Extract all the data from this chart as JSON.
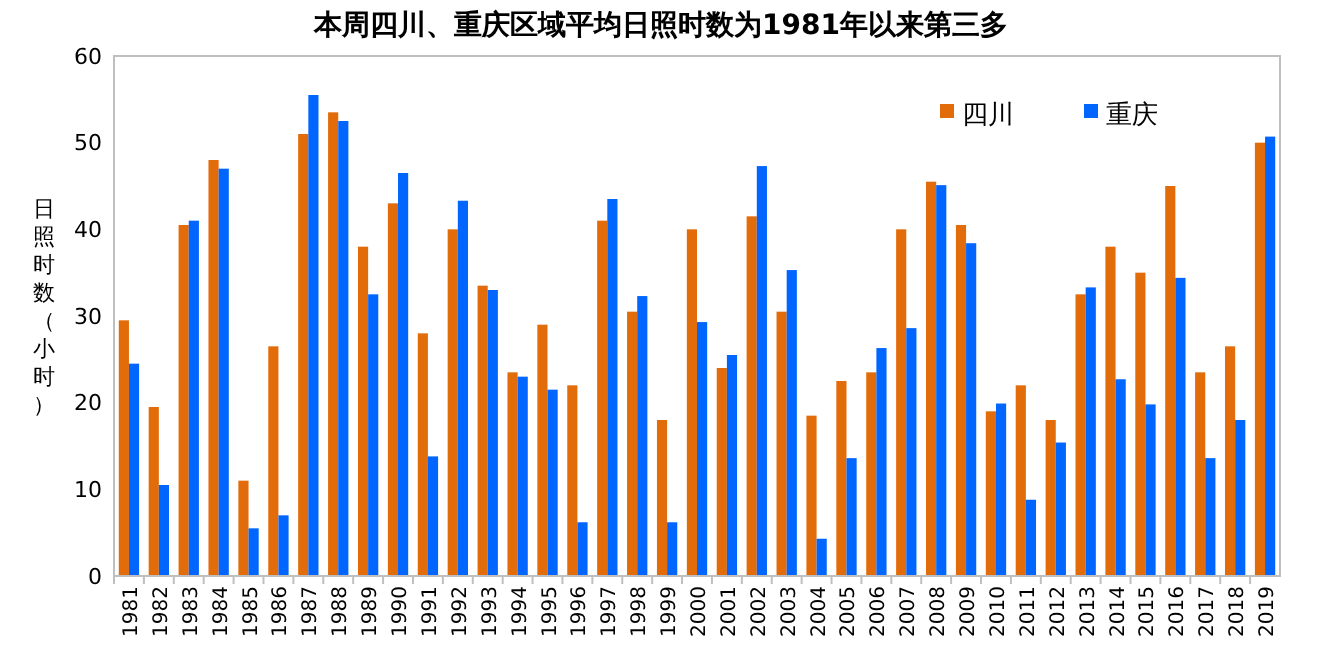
{
  "chart_data": {
    "type": "bar",
    "title": "本周四川、重庆区域平均日照时数为1981年以来第三多",
    "ylabel": "日照时数（小时）",
    "categories": [
      "1981",
      "1982",
      "1983",
      "1984",
      "1985",
      "1986",
      "1987",
      "1988",
      "1989",
      "1990",
      "1991",
      "1992",
      "1993",
      "1994",
      "1995",
      "1996",
      "1997",
      "1998",
      "1999",
      "2000",
      "2001",
      "2002",
      "2003",
      "2004",
      "2005",
      "2006",
      "2007",
      "2008",
      "2009",
      "2010",
      "2011",
      "2012",
      "2013",
      "2014",
      "2015",
      "2016",
      "2017",
      "2018",
      "2019"
    ],
    "series": [
      {
        "name": "四川",
        "color": "#e36c0a",
        "values": [
          29.5,
          19.5,
          40.5,
          48,
          11,
          26.5,
          51,
          53.5,
          38,
          43,
          28,
          40,
          33.5,
          23.5,
          29,
          22,
          41,
          30.5,
          18,
          40,
          24,
          41.5,
          30.5,
          18.5,
          22.5,
          23.5,
          40,
          45.5,
          40.5,
          19,
          22,
          18,
          32.5,
          38,
          35,
          45,
          23.5,
          26.5,
          50
        ]
      },
      {
        "name": "重庆",
        "color": "#0066ff",
        "values": [
          24.5,
          10.5,
          41,
          47,
          5.5,
          7,
          55.5,
          52.5,
          32.5,
          46.5,
          13.8,
          43.3,
          33,
          23,
          21.5,
          6.2,
          43.5,
          32.3,
          6.2,
          29.3,
          25.5,
          47.3,
          35.3,
          4.3,
          13.6,
          26.3,
          28.6,
          45.1,
          38.4,
          19.9,
          8.8,
          15.4,
          33.3,
          22.7,
          19.8,
          34.4,
          13.6,
          18,
          50.7
        ]
      }
    ],
    "ylim": [
      0,
      60
    ],
    "yticks": [
      0,
      10,
      20,
      30,
      40,
      50,
      60
    ],
    "grid": false,
    "legend": "top right"
  }
}
